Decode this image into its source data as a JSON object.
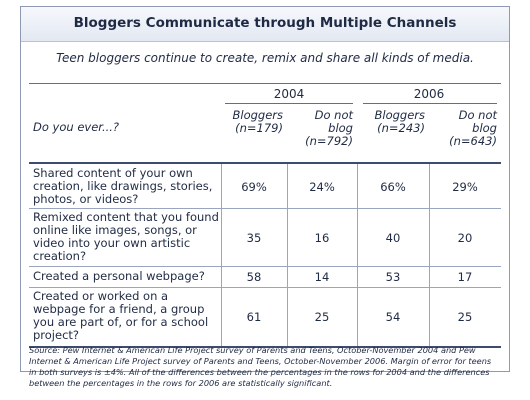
{
  "title": "Bloggers Communicate through Multiple Channels",
  "subtitle": "Teen bloggers continue to create, remix and share all kinds of media.",
  "question_header": "Do you ever...?",
  "years": [
    "2004",
    "2006"
  ],
  "columns": [
    {
      "line1": "Bloggers",
      "line2": "(n=179)"
    },
    {
      "line1": "Do not",
      "line2": "blog",
      "line3": "(n=792)"
    },
    {
      "line1": "Bloggers",
      "line2": "(n=243)"
    },
    {
      "line1": "Do not",
      "line2": "blog",
      "line3": "(n=643)"
    }
  ],
  "rows": [
    {
      "question": [
        "Shared content of your own",
        "creation, like drawings, stories,",
        "photos, or videos?"
      ],
      "values": [
        "69%",
        "24%",
        "66%",
        "29%"
      ]
    },
    {
      "question": [
        "Remixed content that you found",
        "online like images, songs, or",
        "video into your own artistic",
        "creation?"
      ],
      "values": [
        "35",
        "16",
        "40",
        "20"
      ]
    },
    {
      "question": [
        "Created a personal webpage?"
      ],
      "values": [
        "58",
        "14",
        "53",
        "17"
      ]
    },
    {
      "question": [
        "Created or worked on a",
        "webpage for a friend, a group",
        "you are part of, or for a school",
        "project?"
      ],
      "values": [
        "61",
        "25",
        "54",
        "25"
      ]
    }
  ],
  "source": "Source: Pew Internet & American Life Project survey of Parents and Teens, October-November 2004 and Pew Internet & American Life Project survey of Parents and Teens, October-November 2006. Margin of error for teens in both surveys is ±4%. All of the differences between the percentages in the rows for 2004 and the differences between the percentages in the rows for 2006 are statistically significant."
}
